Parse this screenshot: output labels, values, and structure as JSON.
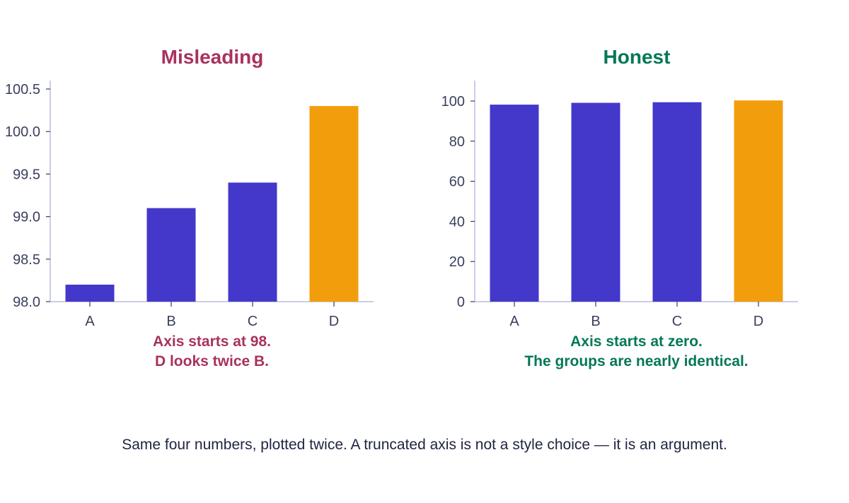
{
  "caption": "Same four numbers, plotted twice. A truncated axis is not a style choice — it is an argument.",
  "colors": {
    "bar": "#4338ca",
    "highlight": "#f29e0c",
    "misleading": "#a8325e",
    "honest": "#047857",
    "axis": "#b8bde0",
    "text": "#3a3f5c"
  },
  "chart_data": [
    {
      "type": "bar",
      "title": "Misleading",
      "categories": [
        "A",
        "B",
        "C",
        "D"
      ],
      "values": [
        98.2,
        99.1,
        99.4,
        100.3
      ],
      "highlight_index": 3,
      "ylim": [
        98.0,
        100.6
      ],
      "yticks": [
        98.0,
        98.5,
        99.0,
        99.5,
        100.0,
        100.5
      ],
      "ytick_labels": [
        "98.0",
        "98.5",
        "99.0",
        "99.5",
        "100.0",
        "100.5"
      ],
      "xlabel": "",
      "ylabel": "",
      "grid": false,
      "annotation": [
        "Axis starts at 98.",
        "D looks twice B."
      ]
    },
    {
      "type": "bar",
      "title": "Honest",
      "categories": [
        "A",
        "B",
        "C",
        "D"
      ],
      "values": [
        98.2,
        99.1,
        99.4,
        100.3
      ],
      "highlight_index": 3,
      "ylim": [
        0,
        110
      ],
      "yticks": [
        0,
        20,
        40,
        60,
        80,
        100
      ],
      "ytick_labels": [
        "0",
        "20",
        "40",
        "60",
        "80",
        "100"
      ],
      "xlabel": "",
      "ylabel": "",
      "grid": false,
      "annotation": [
        "Axis starts at zero.",
        "The groups are nearly identical."
      ]
    }
  ]
}
